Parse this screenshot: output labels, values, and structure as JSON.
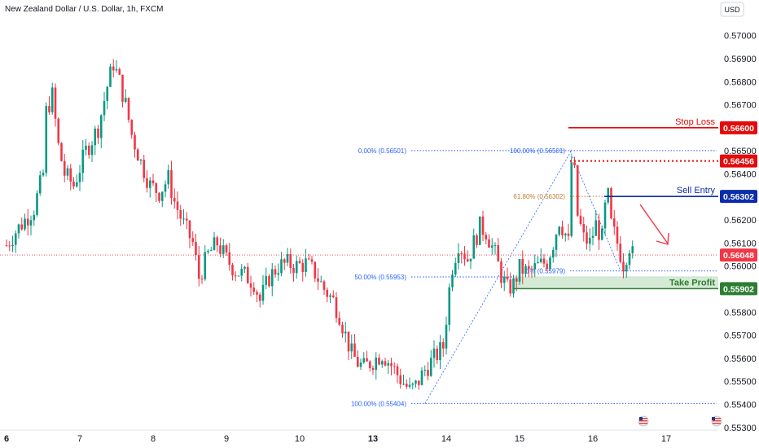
{
  "header": {
    "title": "New Zealand Dollar / U.S. Dollar, 1h, FXCM",
    "currency": "USD"
  },
  "colors": {
    "up": "#089981",
    "down": "#f23645",
    "fib": "#2962ff",
    "fib_618": "#c67c2c",
    "stop_loss": "#e30b0b",
    "sell_entry": "#0b2cab",
    "take_profit": "#2e7d32",
    "take_profit_zone": "#cfe8cf",
    "current_price": "#f23645",
    "arrow": "#f23645"
  },
  "chart_data": {
    "type": "candlestick",
    "symbol": "New Zealand Dollar / U.S. Dollar",
    "interval": "1h",
    "source": "FXCM",
    "ylim": [
      0.553,
      0.5705
    ],
    "y_ticks": [
      "0.57000",
      "0.56900",
      "0.56800",
      "0.56700",
      "0.56500",
      "0.56400",
      "0.56200",
      "0.56100",
      "0.56000",
      "0.55800",
      "0.55700",
      "0.55600",
      "0.55500",
      "0.55400",
      "0.55300"
    ],
    "x_ticks": [
      {
        "label": "6",
        "index": 0
      },
      {
        "label": "7",
        "index": 24
      },
      {
        "label": "8",
        "index": 48
      },
      {
        "label": "9",
        "index": 72
      },
      {
        "label": "10",
        "index": 96
      },
      {
        "label": "13",
        "index": 120
      },
      {
        "label": "14",
        "index": 144
      },
      {
        "label": "15",
        "index": 168
      },
      {
        "label": "16",
        "index": 192
      },
      {
        "label": "17",
        "index": 216
      }
    ],
    "close_anchors": [
      [
        0,
        0.5609
      ],
      [
        3,
        0.5615
      ],
      [
        6,
        0.562
      ],
      [
        9,
        0.5625
      ],
      [
        12,
        0.564
      ],
      [
        13,
        0.5667
      ],
      [
        15,
        0.5674
      ],
      [
        17,
        0.5652
      ],
      [
        19,
        0.564
      ],
      [
        22,
        0.5635
      ],
      [
        26,
        0.565
      ],
      [
        30,
        0.566
      ],
      [
        33,
        0.5678
      ],
      [
        35,
        0.5688
      ],
      [
        37,
        0.568
      ],
      [
        39,
        0.567
      ],
      [
        41,
        0.5657
      ],
      [
        44,
        0.5645
      ],
      [
        47,
        0.5635
      ],
      [
        50,
        0.5632
      ],
      [
        53,
        0.5638
      ],
      [
        55,
        0.5628
      ],
      [
        58,
        0.5618
      ],
      [
        61,
        0.561
      ],
      [
        63,
        0.5595
      ],
      [
        66,
        0.5605
      ],
      [
        69,
        0.561
      ],
      [
        72,
        0.5603
      ],
      [
        75,
        0.5598
      ],
      [
        78,
        0.5596
      ],
      [
        81,
        0.5593
      ],
      [
        83,
        0.5585
      ],
      [
        86,
        0.5595
      ],
      [
        89,
        0.56
      ],
      [
        92,
        0.5601
      ],
      [
        95,
        0.56
      ],
      [
        98,
        0.5601
      ],
      [
        101,
        0.5597
      ],
      [
        104,
        0.559
      ],
      [
        107,
        0.5585
      ],
      [
        109,
        0.5579
      ],
      [
        111,
        0.557
      ],
      [
        113,
        0.5562
      ],
      [
        115,
        0.5558
      ],
      [
        117,
        0.5556
      ],
      [
        120,
        0.5559
      ],
      [
        123,
        0.5562
      ],
      [
        126,
        0.5557
      ],
      [
        129,
        0.5551
      ],
      [
        132,
        0.5546
      ],
      [
        134,
        0.5548
      ],
      [
        137,
        0.5555
      ],
      [
        140,
        0.556
      ],
      [
        143,
        0.5565
      ],
      [
        145,
        0.559
      ],
      [
        146,
        0.56
      ],
      [
        148,
        0.561
      ],
      [
        151,
        0.5603
      ],
      [
        153,
        0.561
      ],
      [
        155,
        0.5617
      ],
      [
        157,
        0.5615
      ],
      [
        160,
        0.5605
      ],
      [
        162,
        0.5596
      ],
      [
        164,
        0.559
      ],
      [
        166,
        0.5592
      ],
      [
        168,
        0.5599
      ],
      [
        171,
        0.5597
      ],
      [
        174,
        0.56
      ],
      [
        177,
        0.5602
      ],
      [
        179,
        0.561
      ],
      [
        181,
        0.562
      ],
      [
        183,
        0.5614
      ],
      [
        184,
        0.561
      ],
      [
        185,
        0.5645
      ],
      [
        186,
        0.564
      ],
      [
        187,
        0.5622
      ],
      [
        189,
        0.5612
      ],
      [
        191,
        0.561
      ],
      [
        193,
        0.5618
      ],
      [
        195,
        0.5612
      ],
      [
        196,
        0.5625
      ],
      [
        197,
        0.563
      ],
      [
        198,
        0.5618
      ],
      [
        200,
        0.561
      ],
      [
        202,
        0.5601
      ],
      [
        203,
        0.5605
      ],
      [
        204,
        0.5609
      ],
      [
        205,
        0.5605
      ]
    ],
    "fibonacci": [
      {
        "label": "0.00% (0.56501)",
        "value": 0.56501
      },
      {
        "label": "50.00% (0.55953)",
        "value": 0.55953
      },
      {
        "label": "100.00% (0.55404)",
        "value": 0.55404
      },
      {
        "label": "100.00% (0.56501)",
        "value": 0.56501
      },
      {
        "label": "61.80% (0.56302)",
        "value": 0.56302
      },
      {
        "label": "1% (0.55979)",
        "value": 0.55979
      }
    ],
    "levels": [
      {
        "name": "Stop Loss",
        "value": 0.566,
        "tag": "0.56600"
      },
      {
        "name": "",
        "value": 0.56456,
        "tag": "0.56456"
      },
      {
        "name": "Sell Entry",
        "value": 0.56302,
        "tag": "0.56302"
      },
      {
        "name": "",
        "value": 0.56048,
        "tag": "0.56048"
      },
      {
        "name": "Take Profit",
        "value": 0.55902,
        "tag": "0.55902"
      }
    ]
  }
}
